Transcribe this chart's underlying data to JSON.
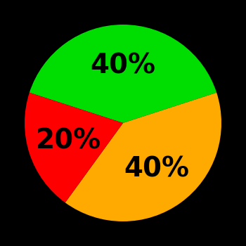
{
  "slices": [
    {
      "label": "40%",
      "value": 40,
      "color": "#00dd00"
    },
    {
      "label": "40%",
      "value": 40,
      "color": "#ffaa00"
    },
    {
      "label": "20%",
      "value": 20,
      "color": "#ff0000"
    }
  ],
  "background_color": "#000000",
  "text_color": "#000000",
  "text_fontsize": 28,
  "text_fontweight": "bold",
  "startangle": 162,
  "figsize": [
    3.5,
    3.5
  ],
  "dpi": 100
}
